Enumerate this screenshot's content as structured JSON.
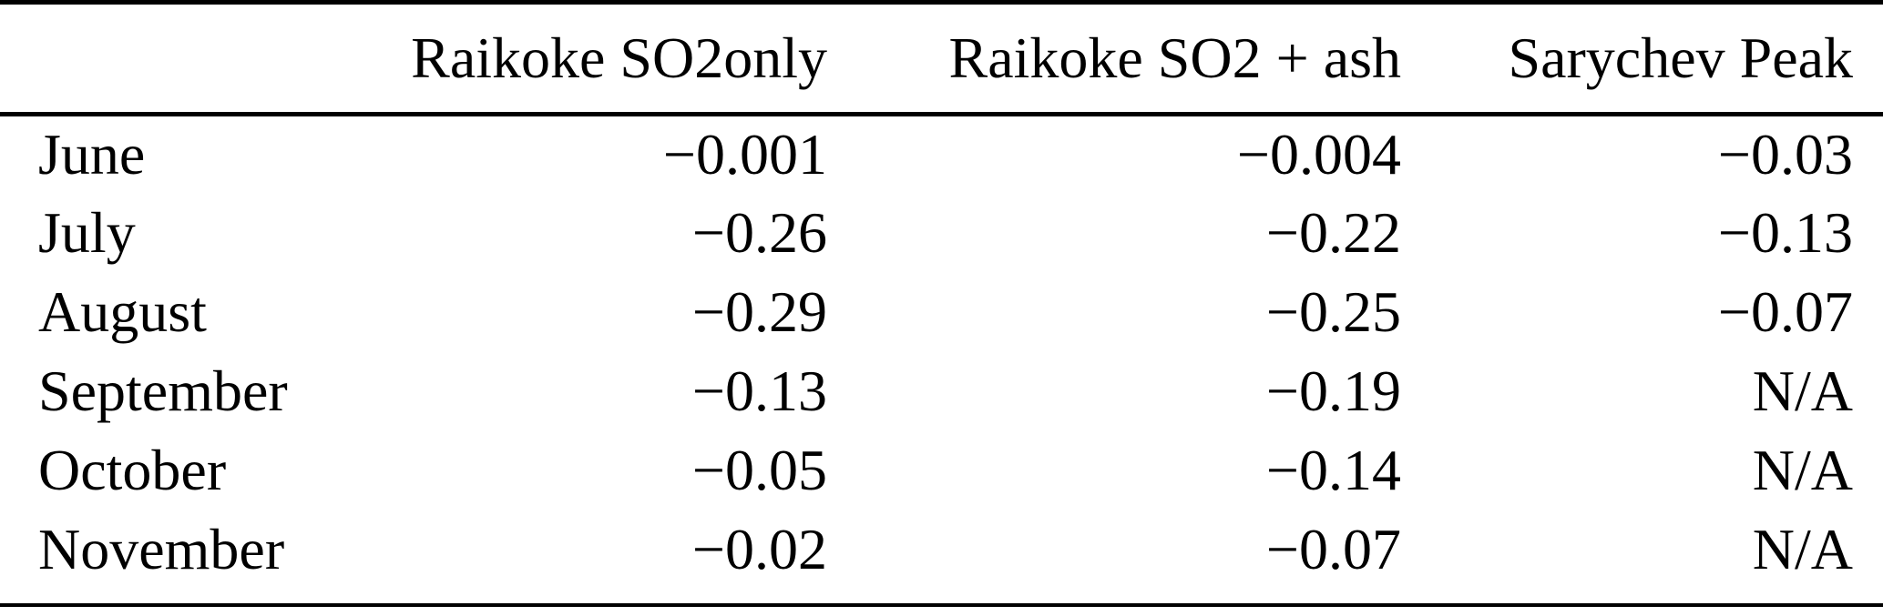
{
  "table": {
    "header": {
      "month": "",
      "so2only": "Raikoke SO2only",
      "so2ash": "Raikoke SO2 + ash",
      "sarychev": "Sarychev Peak"
    },
    "rows": [
      {
        "month": "June",
        "so2only": "−0.001",
        "so2ash": "−0.004",
        "sarychev": "−0.03"
      },
      {
        "month": "July",
        "so2only": "−0.26",
        "so2ash": "−0.22",
        "sarychev": "−0.13"
      },
      {
        "month": "August",
        "so2only": "−0.29",
        "so2ash": "−0.25",
        "sarychev": "−0.07"
      },
      {
        "month": "September",
        "so2only": "−0.13",
        "so2ash": "−0.19",
        "sarychev": "N/A"
      },
      {
        "month": "October",
        "so2only": "−0.05",
        "so2ash": "−0.14",
        "sarychev": "N/A"
      },
      {
        "month": "November",
        "so2only": "−0.02",
        "so2ash": "−0.07",
        "sarychev": "N/A"
      }
    ],
    "colors": {
      "text": "#000000",
      "background": "#ffffff",
      "rule": "#000000"
    }
  }
}
